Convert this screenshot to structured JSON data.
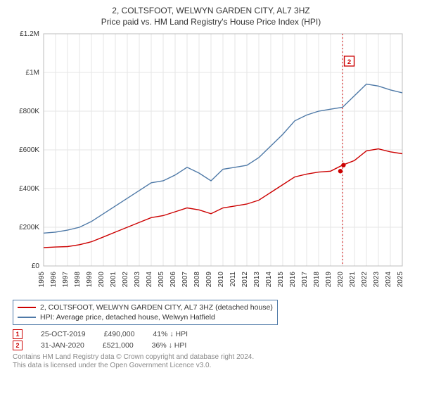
{
  "title_line1": "2, COLTSFOOT, WELWYN GARDEN CITY, AL7 3HZ",
  "title_line2": "Price paid vs. HM Land Registry's House Price Index (HPI)",
  "chart": {
    "type": "line",
    "background_color": "#ffffff",
    "plot_border_color": "#bcbcbc",
    "grid_color": "#e6e6e6",
    "x_years": [
      1995,
      1996,
      1997,
      1998,
      1999,
      2000,
      2001,
      2002,
      2003,
      2004,
      2005,
      2006,
      2007,
      2008,
      2009,
      2010,
      2011,
      2012,
      2013,
      2014,
      2015,
      2016,
      2017,
      2018,
      2019,
      2020,
      2021,
      2022,
      2023,
      2024,
      2025
    ],
    "ylim": [
      0,
      1200000
    ],
    "ytick_step": 200000,
    "ytick_labels": [
      "£0",
      "£200K",
      "£400K",
      "£600K",
      "£800K",
      "£1M",
      "£1.2M"
    ],
    "label_fontsize": 10,
    "series_price_paid": {
      "label": "2, COLTSFOOT, WELWYN GARDEN CITY, AL7 3HZ (detached house)",
      "color": "#cc0000",
      "line_width": 1.4,
      "values": [
        95000,
        98000,
        100000,
        110000,
        125000,
        150000,
        175000,
        200000,
        225000,
        250000,
        260000,
        280000,
        300000,
        290000,
        270000,
        300000,
        310000,
        320000,
        340000,
        380000,
        420000,
        460000,
        475000,
        485000,
        490000,
        521000,
        545000,
        595000,
        605000,
        590000,
        580000
      ]
    },
    "series_hpi": {
      "label": "HPI: Average price, detached house, Welwyn Hatfield",
      "color": "#4e79a7",
      "line_width": 1.4,
      "values": [
        170000,
        175000,
        185000,
        200000,
        230000,
        270000,
        310000,
        350000,
        390000,
        430000,
        440000,
        470000,
        510000,
        480000,
        440000,
        500000,
        510000,
        520000,
        560000,
        620000,
        680000,
        750000,
        780000,
        800000,
        810000,
        820000,
        880000,
        940000,
        930000,
        910000,
        895000
      ]
    },
    "marker_line": {
      "x_year_fraction": 2020.0,
      "color": "#cc0000",
      "dash": "2,3"
    },
    "marker_label_on_chart": {
      "number": "2",
      "x_year": 2020.15,
      "y_value": 1055000
    },
    "marker_points": [
      {
        "x_year": 2019.82,
        "y_value": 490000
      },
      {
        "x_year": 2020.08,
        "y_value": 521000
      }
    ]
  },
  "legend": {
    "rows": [
      {
        "color": "#cc0000",
        "label_key": "chart.series_price_paid.label"
      },
      {
        "color": "#4e79a7",
        "label_key": "chart.series_hpi.label"
      }
    ]
  },
  "markers": [
    {
      "num": "1",
      "date": "25-OCT-2019",
      "price": "£490,000",
      "pct": "41% ↓ HPI"
    },
    {
      "num": "2",
      "date": "31-JAN-2020",
      "price": "£521,000",
      "pct": "36% ↓ HPI"
    }
  ],
  "footer_line1": "Contains HM Land Registry data © Crown copyright and database right 2024.",
  "footer_line2": "This data is licensed under the Open Government Licence v3.0."
}
